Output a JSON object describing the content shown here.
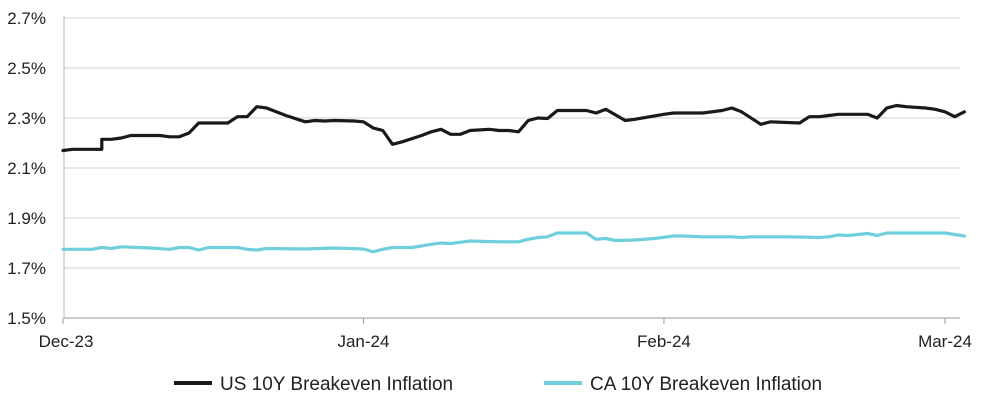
{
  "chart_data": {
    "type": "line",
    "title": "",
    "xlabel": "",
    "ylabel": "",
    "ylim": [
      1.5,
      2.7
    ],
    "yticks": [
      "1.5%",
      "1.7%",
      "1.9%",
      "2.1%",
      "2.3%",
      "2.5%",
      "2.7%"
    ],
    "ytick_values": [
      1.5,
      1.7,
      1.9,
      2.1,
      2.3,
      2.5,
      2.7
    ],
    "xlim": [
      "2023-12-01",
      "2024-03-01"
    ],
    "xticks": [
      "Dec-23",
      "Jan-24",
      "Feb-24",
      "Mar-24"
    ],
    "xtick_dates": [
      "2023-12-01",
      "2024-01-01",
      "2024-02-01",
      "2024-03-01"
    ],
    "grid": "horizontal",
    "legend": "bottom",
    "series": [
      {
        "name": "US 10Y Breakeven Inflation",
        "color": "#1a1a1a",
        "points": [
          [
            "2023-12-01",
            2.17
          ],
          [
            "2023-12-02",
            2.175
          ],
          [
            "2023-12-04",
            2.175
          ],
          [
            "2023-12-05",
            2.175
          ],
          [
            "2023-12-05",
            2.215
          ],
          [
            "2023-12-06",
            2.215
          ],
          [
            "2023-12-07",
            2.22
          ],
          [
            "2023-12-08",
            2.23
          ],
          [
            "2023-12-10",
            2.23
          ],
          [
            "2023-12-11",
            2.23
          ],
          [
            "2023-12-12",
            2.225
          ],
          [
            "2023-12-13",
            2.225
          ],
          [
            "2023-12-14",
            2.24
          ],
          [
            "2023-12-15",
            2.28
          ],
          [
            "2023-12-17",
            2.28
          ],
          [
            "2023-12-18",
            2.28
          ],
          [
            "2023-12-19",
            2.305
          ],
          [
            "2023-12-20",
            2.305
          ],
          [
            "2023-12-21",
            2.345
          ],
          [
            "2023-12-22",
            2.34
          ],
          [
            "2023-12-24",
            2.31
          ],
          [
            "2023-12-26",
            2.285
          ],
          [
            "2023-12-27",
            2.29
          ],
          [
            "2023-12-28",
            2.288
          ],
          [
            "2023-12-29",
            2.29
          ],
          [
            "2023-12-31",
            2.288
          ],
          [
            "2024-01-01",
            2.285
          ],
          [
            "2024-01-02",
            2.26
          ],
          [
            "2024-01-03",
            2.25
          ],
          [
            "2024-01-04",
            2.195
          ],
          [
            "2024-01-05",
            2.205
          ],
          [
            "2024-01-07",
            2.23
          ],
          [
            "2024-01-08",
            2.245
          ],
          [
            "2024-01-09",
            2.255
          ],
          [
            "2024-01-10",
            2.235
          ],
          [
            "2024-01-11",
            2.235
          ],
          [
            "2024-01-12",
            2.25
          ],
          [
            "2024-01-14",
            2.255
          ],
          [
            "2024-01-15",
            2.25
          ],
          [
            "2024-01-16",
            2.25
          ],
          [
            "2024-01-17",
            2.245
          ],
          [
            "2024-01-18",
            2.29
          ],
          [
            "2024-01-19",
            2.3
          ],
          [
            "2024-01-20",
            2.298
          ],
          [
            "2024-01-21",
            2.33
          ],
          [
            "2024-01-22",
            2.33
          ],
          [
            "2024-01-24",
            2.33
          ],
          [
            "2024-01-25",
            2.32
          ],
          [
            "2024-01-26",
            2.335
          ],
          [
            "2024-01-28",
            2.29
          ],
          [
            "2024-01-29",
            2.295
          ],
          [
            "2024-02-01",
            2.315
          ],
          [
            "2024-02-02",
            2.32
          ],
          [
            "2024-02-05",
            2.32
          ],
          [
            "2024-02-07",
            2.33
          ],
          [
            "2024-02-08",
            2.34
          ],
          [
            "2024-02-09",
            2.325
          ],
          [
            "2024-02-11",
            2.275
          ],
          [
            "2024-02-12",
            2.285
          ],
          [
            "2024-02-15",
            2.28
          ],
          [
            "2024-02-16",
            2.305
          ],
          [
            "2024-02-17",
            2.305
          ],
          [
            "2024-02-18",
            2.31
          ],
          [
            "2024-02-19",
            2.315
          ],
          [
            "2024-02-22",
            2.315
          ],
          [
            "2024-02-23",
            2.3
          ],
          [
            "2024-02-24",
            2.34
          ],
          [
            "2024-02-25",
            2.35
          ],
          [
            "2024-02-26",
            2.345
          ],
          [
            "2024-02-28",
            2.34
          ],
          [
            "2024-02-29",
            2.335
          ],
          [
            "2024-03-01",
            2.325
          ],
          [
            "2024-03-02",
            2.305
          ],
          [
            "2024-03-03",
            2.325
          ]
        ]
      },
      {
        "name": "CA 10Y Breakeven Inflation",
        "color": "#6fcfdc",
        "points": [
          [
            "2023-12-01",
            1.775
          ],
          [
            "2023-12-04",
            1.775
          ],
          [
            "2023-12-05",
            1.782
          ],
          [
            "2023-12-06",
            1.778
          ],
          [
            "2023-12-07",
            1.785
          ],
          [
            "2023-12-10",
            1.78
          ],
          [
            "2023-12-12",
            1.775
          ],
          [
            "2023-12-13",
            1.782
          ],
          [
            "2023-12-14",
            1.782
          ],
          [
            "2023-12-15",
            1.772
          ],
          [
            "2023-12-16",
            1.782
          ],
          [
            "2023-12-19",
            1.782
          ],
          [
            "2023-12-20",
            1.775
          ],
          [
            "2023-12-21",
            1.772
          ],
          [
            "2023-12-22",
            1.778
          ],
          [
            "2023-12-26",
            1.776
          ],
          [
            "2023-12-29",
            1.78
          ],
          [
            "2024-01-01",
            1.776
          ],
          [
            "2024-01-02",
            1.765
          ],
          [
            "2024-01-03",
            1.775
          ],
          [
            "2024-01-04",
            1.782
          ],
          [
            "2024-01-06",
            1.782
          ],
          [
            "2024-01-08",
            1.795
          ],
          [
            "2024-01-09",
            1.8
          ],
          [
            "2024-01-10",
            1.798
          ],
          [
            "2024-01-12",
            1.808
          ],
          [
            "2024-01-15",
            1.805
          ],
          [
            "2024-01-17",
            1.805
          ],
          [
            "2024-01-18",
            1.815
          ],
          [
            "2024-01-19",
            1.822
          ],
          [
            "2024-01-20",
            1.825
          ],
          [
            "2024-01-21",
            1.84
          ],
          [
            "2024-01-23",
            1.84
          ],
          [
            "2024-01-24",
            1.84
          ],
          [
            "2024-01-25",
            1.815
          ],
          [
            "2024-01-26",
            1.818
          ],
          [
            "2024-01-27",
            1.81
          ],
          [
            "2024-01-29",
            1.812
          ],
          [
            "2024-01-31",
            1.818
          ],
          [
            "2024-02-02",
            1.828
          ],
          [
            "2024-02-03",
            1.828
          ],
          [
            "2024-02-05",
            1.825
          ],
          [
            "2024-02-08",
            1.825
          ],
          [
            "2024-02-09",
            1.822
          ],
          [
            "2024-02-10",
            1.825
          ],
          [
            "2024-02-14",
            1.825
          ],
          [
            "2024-02-17",
            1.822
          ],
          [
            "2024-02-18",
            1.825
          ],
          [
            "2024-02-19",
            1.832
          ],
          [
            "2024-02-20",
            1.83
          ],
          [
            "2024-02-22",
            1.838
          ],
          [
            "2024-02-23",
            1.83
          ],
          [
            "2024-02-24",
            1.84
          ],
          [
            "2024-02-26",
            1.84
          ],
          [
            "2024-02-29",
            1.84
          ],
          [
            "2024-03-01",
            1.84
          ],
          [
            "2024-03-03",
            1.828
          ]
        ]
      }
    ]
  }
}
